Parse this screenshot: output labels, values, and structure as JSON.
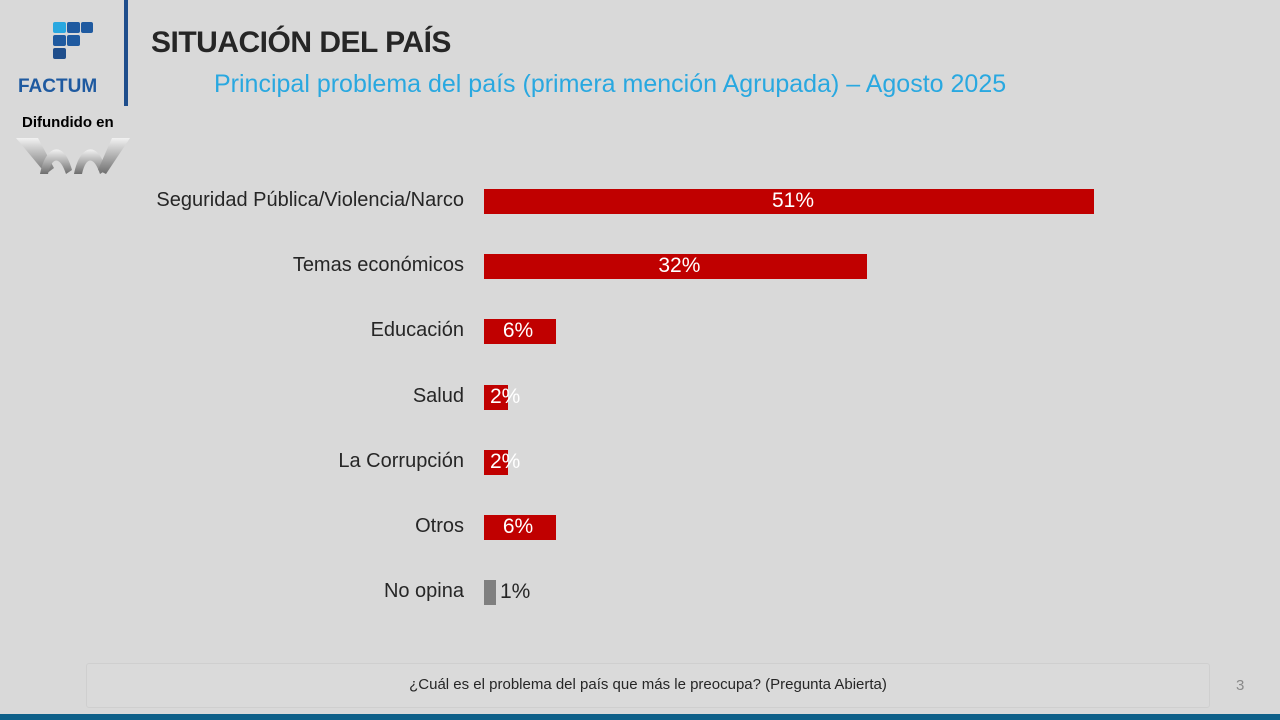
{
  "brand": {
    "name": "FACTUM",
    "distributed_label": "Difundido en",
    "accent": "#1f5aa0"
  },
  "header": {
    "title": "SITUACIÓN DEL PAÍS",
    "subtitle": "Principal problema del país (primera mención Agrupada) – Agosto 2025"
  },
  "footer": {
    "question": "¿Cuál es el problema del país que más le preocupa? (Pregunta Abierta)",
    "page_number": "3"
  },
  "chart_data": {
    "type": "bar",
    "orientation": "horizontal",
    "title": "Principal problema del país (primera mención Agrupada) – Agosto 2025",
    "categories": [
      "Seguridad Pública/Violencia/Narco",
      "Temas económicos",
      "Educación",
      "Salud",
      "La Corrupción",
      "Otros",
      "No opina"
    ],
    "values": [
      51,
      32,
      6,
      2,
      2,
      6,
      1
    ],
    "value_labels": [
      "51%",
      "32%",
      "6%",
      "2%",
      "2%",
      "6%",
      "1%"
    ],
    "colors": [
      "#c00000",
      "#c00000",
      "#c00000",
      "#c00000",
      "#c00000",
      "#c00000",
      "#7f7f7f"
    ],
    "unit": "%",
    "xlim": [
      0,
      51
    ],
    "grid": false,
    "legend": "none"
  }
}
